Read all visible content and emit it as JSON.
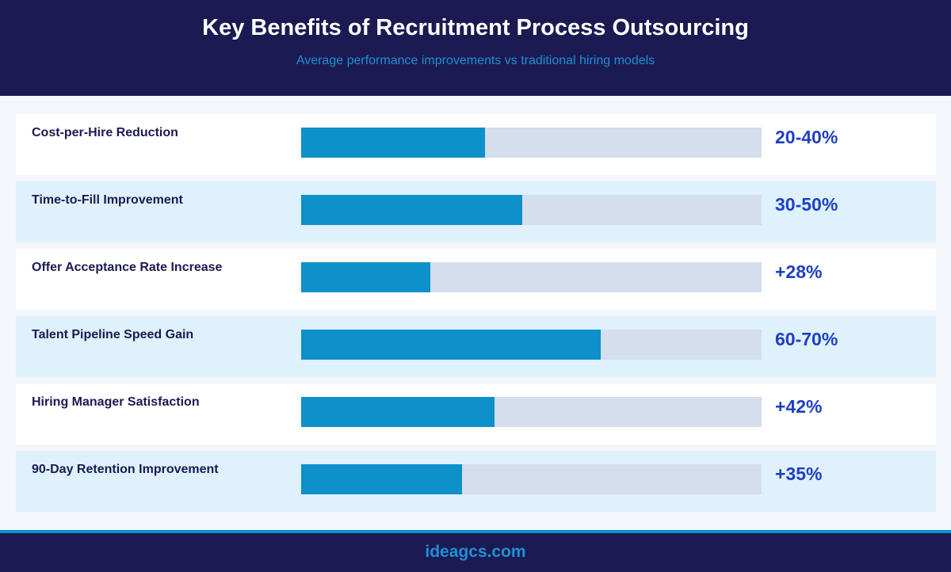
{
  "header": {
    "title": "Key Benefits of Recruitment Process Outsourcing",
    "subtitle": "Average performance improvements vs traditional hiring models"
  },
  "footer": {
    "text": "ideagcs.com"
  },
  "colors": {
    "header_bg": "#1b1a52",
    "accent": "#0e90cb",
    "track": "#d4deec",
    "value_text": "#1e3fc4",
    "alt_row_bg": "#dff1fc"
  },
  "chart_data": {
    "type": "bar",
    "orientation": "horizontal",
    "title": "Key Benefits of Recruitment Process Outsourcing",
    "subtitle": "Average performance improvements vs traditional hiring models",
    "categories": [
      "Cost-per-Hire Reduction",
      "Time-to-Fill Improvement",
      "Offer Acceptance Rate Increase",
      "Talent Pipeline Speed Gain",
      "Hiring Manager Satisfaction",
      "90-Day Retention Improvement"
    ],
    "labels": [
      "20-40%",
      "30-50%",
      "+28%",
      "60-70%",
      "+42%",
      "+35%"
    ],
    "values": [
      40,
      48,
      28,
      65,
      42,
      35
    ],
    "xlim": [
      0,
      100
    ],
    "grid": false,
    "legend": "none"
  }
}
